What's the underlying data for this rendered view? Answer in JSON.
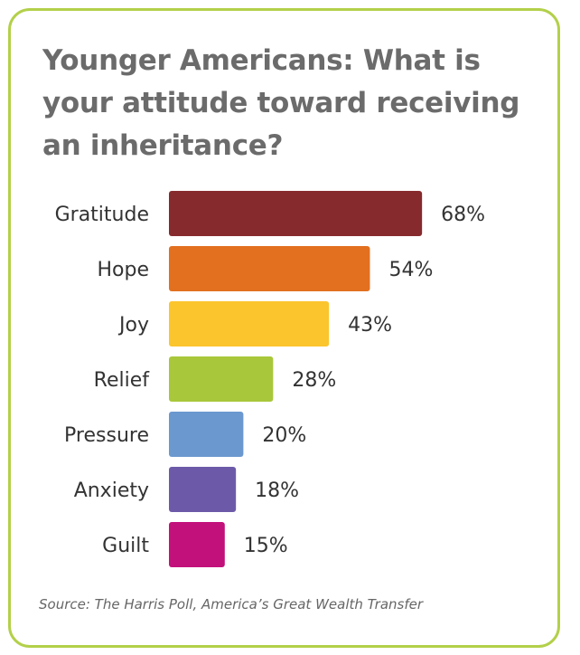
{
  "title": "Younger Americans: What is your attitude toward receiving an inheritance?",
  "source": "Source: The Harris Poll, America’s Great Wealth Transfer",
  "chart_data": {
    "type": "bar",
    "orientation": "horizontal",
    "title": "Younger Americans: What is your attitude toward receiving an inheritance?",
    "categories": [
      "Gratitude",
      "Hope",
      "Joy",
      "Relief",
      "Pressure",
      "Anxiety",
      "Guilt"
    ],
    "values": [
      68,
      54,
      43,
      28,
      20,
      18,
      15
    ],
    "value_labels": [
      "68%",
      "54%",
      "43%",
      "28%",
      "20%",
      "18%",
      "15%"
    ],
    "colors": [
      "#862a2e",
      "#e2701f",
      "#fbc52d",
      "#a8c73a",
      "#6b98cf",
      "#6c5aa9",
      "#c2117b"
    ],
    "xlim": [
      0,
      100
    ],
    "grid": false,
    "legend": "none"
  }
}
